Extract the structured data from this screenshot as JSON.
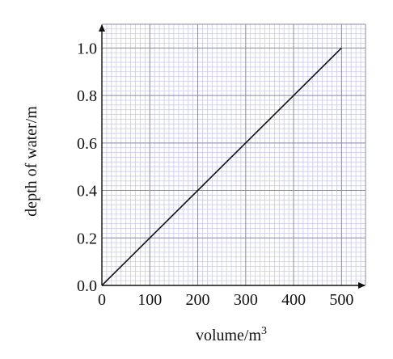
{
  "chart_data": {
    "type": "line",
    "title": "",
    "xlabel": "volume/m",
    "xlabel_sup": "3",
    "ylabel": "depth of water/m",
    "xlim": [
      0,
      550
    ],
    "ylim": [
      0,
      1.1
    ],
    "x_ticks": [
      0,
      100,
      200,
      300,
      400,
      500
    ],
    "y_ticks": [
      0.0,
      0.2,
      0.4,
      0.6,
      0.8,
      1.0
    ],
    "x_tick_labels": [
      "0",
      "100",
      "200",
      "300",
      "400",
      "500"
    ],
    "y_tick_labels": [
      "0.0",
      "0.2",
      "0.4",
      "0.6",
      "0.8",
      "1.0"
    ],
    "grid": true,
    "legend": "none",
    "series": [
      {
        "x": [
          0,
          500
        ],
        "y": [
          0.0,
          1.0
        ]
      }
    ],
    "colors": {
      "major_grid": "#8a8aaa",
      "minor_grid": "#c9c9f2",
      "line": "#111111",
      "axis": "#111111"
    }
  }
}
